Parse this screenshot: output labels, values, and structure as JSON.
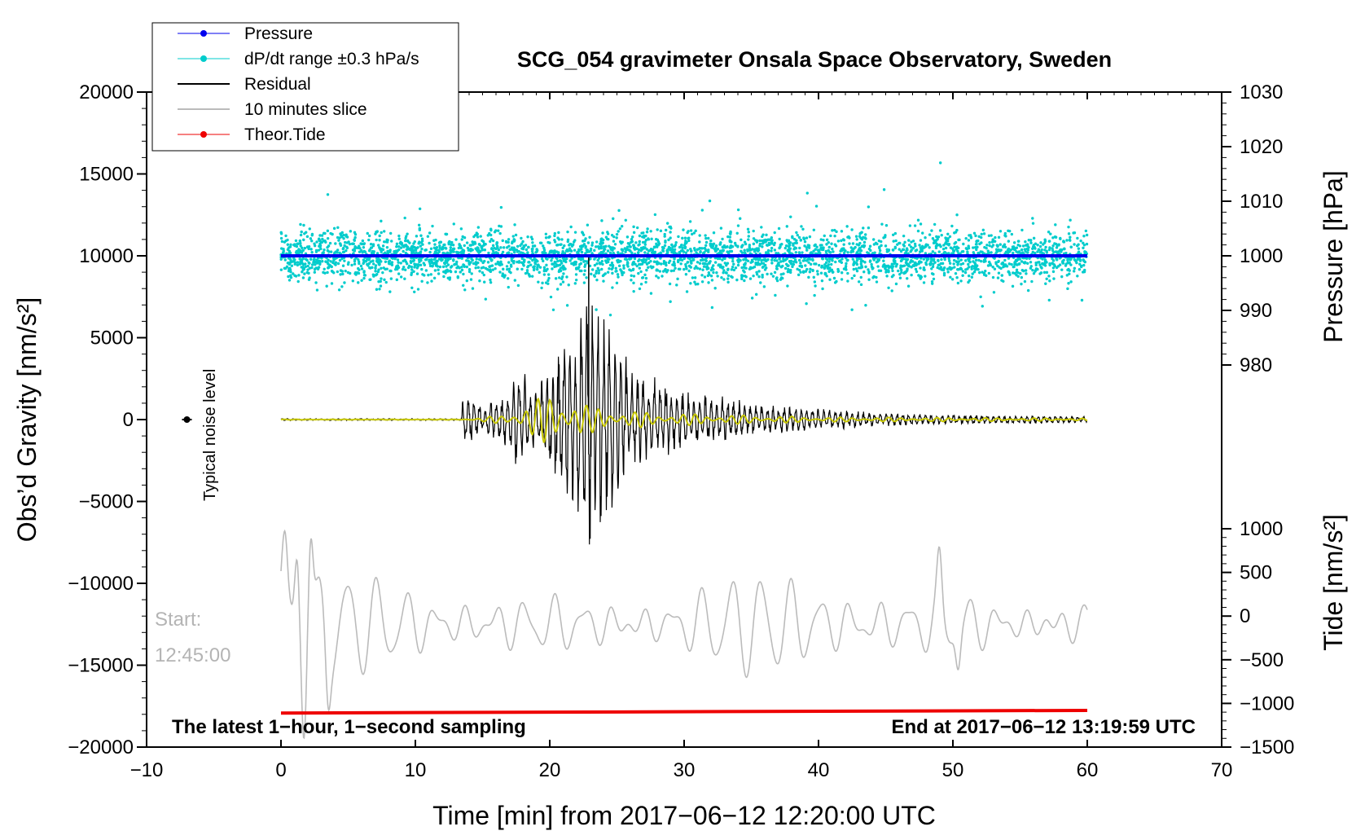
{
  "chart_data": {
    "type": "line",
    "title": "SCG_054 gravimeter Onsala Space Observatory, Sweden",
    "xlabel": "Time [min] from 2017−06−12 12:20:00 UTC",
    "ylabel_left": "Obs’d Gravity [nm/s²]",
    "ylabel_right_pressure": "Pressure [hPa]",
    "ylabel_right_tide": "Tide [nm/s²]",
    "xlim": [
      -10,
      70
    ],
    "ylim_left": [
      -20000,
      20000
    ],
    "pressure_axis": {
      "ticks": [
        980,
        990,
        1000,
        1010,
        1020,
        1030
      ],
      "tick_labels": [
        "980",
        "990",
        "1000",
        "1010",
        "1020",
        "1030"
      ],
      "left_axis_equivalent": [
        [
          980,
          3333
        ],
        [
          1030,
          20000
        ]
      ]
    },
    "tide_axis": {
      "ticks": [
        -1500,
        -1000,
        -500,
        0,
        500,
        1000
      ],
      "tick_labels": [
        "−1500",
        "−1000",
        "−500",
        "0",
        "500",
        "1000"
      ],
      "left_axis_equivalent": [
        [
          -1500,
          -20000
        ],
        [
          1000,
          -6667
        ]
      ]
    },
    "x_ticks": [
      -10,
      0,
      10,
      20,
      30,
      40,
      50,
      60,
      70
    ],
    "x_tick_labels": [
      "−10",
      "0",
      "10",
      "20",
      "30",
      "40",
      "50",
      "60",
      "70"
    ],
    "y_ticks": [
      -20000,
      -15000,
      -10000,
      -5000,
      0,
      5000,
      10000,
      15000,
      20000
    ],
    "y_tick_labels": [
      "−20000",
      "−15000",
      "−10000",
      "−5000",
      "0",
      "5000",
      "10000",
      "15000",
      "20000"
    ],
    "legend": {
      "position": "top-left",
      "entries": [
        {
          "label": "Pressure",
          "color": "#0000ee",
          "marker": true
        },
        {
          "label": "dP/dt range ±0.3 hPa/s",
          "color": "#00cccc",
          "marker": true
        },
        {
          "label": "Residual",
          "color": "#000000",
          "marker": false
        },
        {
          "label": "10 minutes slice",
          "color": "#bbbbbb",
          "marker": false
        },
        {
          "label": "Theor.Tide",
          "color": "#ee0000",
          "marker": true
        }
      ]
    },
    "series": [
      {
        "name": "Pressure",
        "color": "#0000ee",
        "x": [
          0,
          60
        ],
        "y_hpa": [
          1000,
          1000
        ]
      },
      {
        "name": "dP/dt range ±0.3 hPa/s",
        "color": "#00cccc",
        "center_hpa": 1000,
        "spread_hpa": 12,
        "x_range": [
          0,
          60
        ]
      },
      {
        "name": "Residual",
        "color": "#000000",
        "envelope_x": [
          0,
          13.4,
          13.6,
          15,
          17,
          17.5,
          19,
          21,
          22,
          23,
          24,
          25,
          26,
          28,
          30,
          33,
          36,
          40,
          45,
          50,
          55,
          60
        ],
        "envelope_amp": [
          60,
          60,
          2200,
          800,
          1800,
          3500,
          2000,
          5000,
          6500,
          8000,
          6500,
          5000,
          3500,
          2500,
          1800,
          1400,
          900,
          700,
          400,
          300,
          250,
          200
        ]
      },
      {
        "name": "Residual (filtered)",
        "color": "#c8c800",
        "envelope_x": [
          0,
          13.4,
          17,
          18,
          20,
          22,
          23,
          25,
          28,
          33,
          40,
          60
        ],
        "envelope_amp": [
          20,
          20,
          300,
          1100,
          1500,
          1300,
          800,
          600,
          400,
          300,
          150,
          80
        ]
      },
      {
        "name": "10 minutes slice",
        "color": "#bbbbbb",
        "center": -12500,
        "x_range": [
          0,
          60
        ],
        "notable_points": [
          [
            0,
            -10200
          ],
          [
            0.3,
            -8500
          ],
          [
            1.2,
            -7500
          ],
          [
            1.7,
            -18600
          ],
          [
            2.2,
            -6200
          ],
          [
            3.5,
            -16000
          ],
          [
            49,
            -9200
          ],
          [
            50.4,
            -14900
          ]
        ]
      },
      {
        "name": "Theor.Tide",
        "color": "#ee0000",
        "x": [
          0,
          60
        ],
        "y_tide_nm_s2": [
          -1110,
          -1080
        ]
      }
    ],
    "annotations": {
      "noise_label": "Typical noise level",
      "noise_marker": {
        "x": -7,
        "y": 0
      },
      "start_label": "Start:",
      "start_time": "12:45:00",
      "bottom_left_note": "The latest 1−hour, 1−second sampling",
      "bottom_right_note": "End at 2017−06−12 13:19:59 UTC"
    }
  }
}
